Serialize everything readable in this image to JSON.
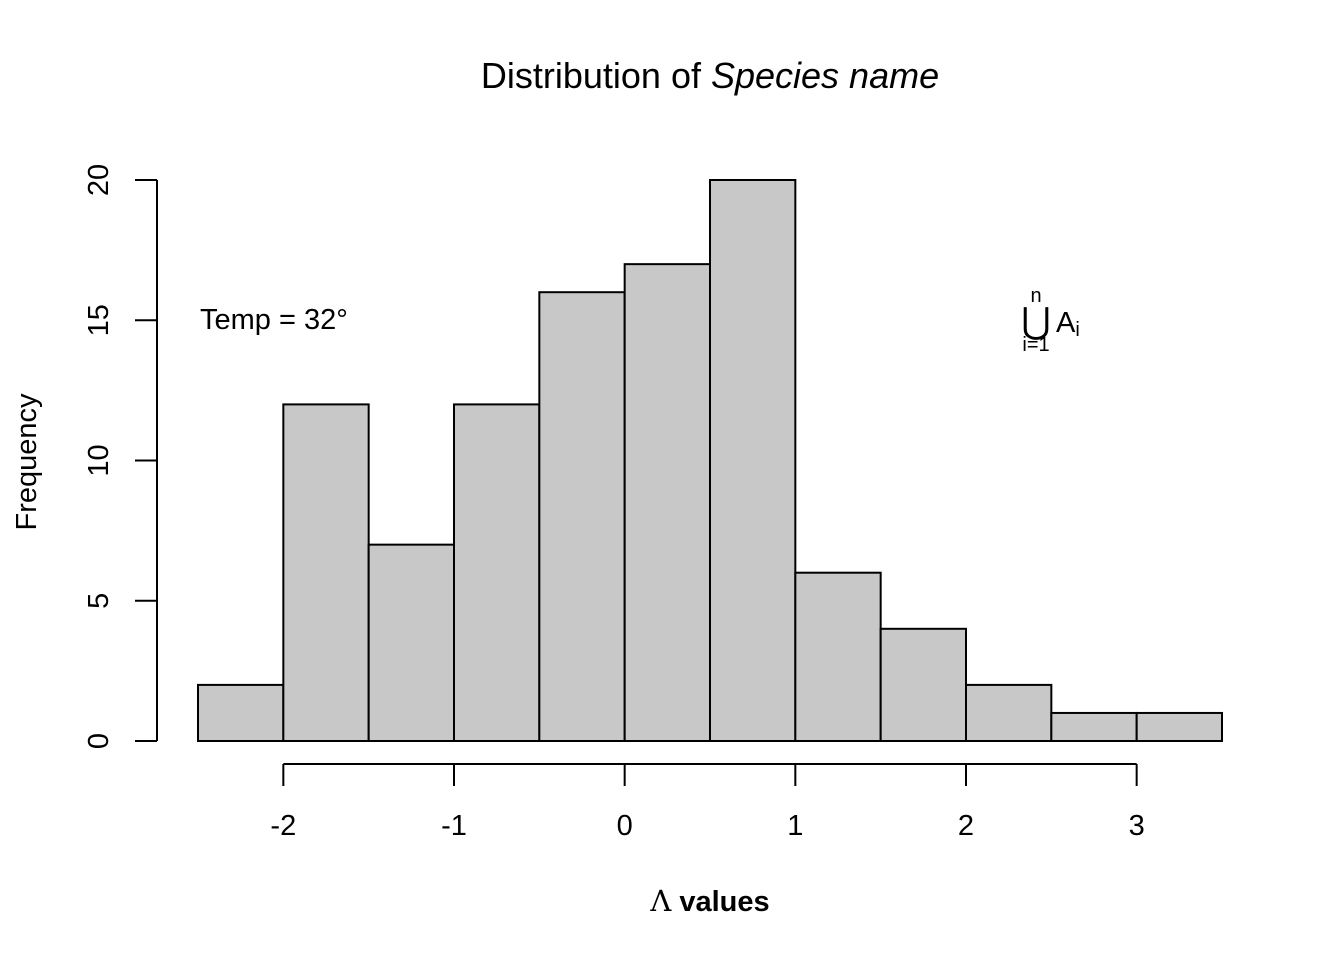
{
  "chart_data": {
    "type": "bar",
    "title_prefix": "Distribution of ",
    "title_italic": "Species name",
    "xlabel_symbol": "Λ",
    "xlabel_text": " values",
    "ylabel": "Frequency",
    "bins": [
      {
        "x0": -2.5,
        "x1": -2.0,
        "count": 2
      },
      {
        "x0": -2.0,
        "x1": -1.5,
        "count": 12
      },
      {
        "x0": -1.5,
        "x1": -1.0,
        "count": 7
      },
      {
        "x0": -1.0,
        "x1": -0.5,
        "count": 12
      },
      {
        "x0": -0.5,
        "x1": 0.0,
        "count": 16
      },
      {
        "x0": 0.0,
        "x1": 0.5,
        "count": 17
      },
      {
        "x0": 0.5,
        "x1": 1.0,
        "count": 20
      },
      {
        "x0": 1.0,
        "x1": 1.5,
        "count": 6
      },
      {
        "x0": 1.5,
        "x1": 2.0,
        "count": 4
      },
      {
        "x0": 2.0,
        "x1": 2.5,
        "count": 2
      },
      {
        "x0": 2.5,
        "x1": 3.0,
        "count": 1
      },
      {
        "x0": 3.0,
        "x1": 3.5,
        "count": 1
      }
    ],
    "xlim": [
      -2.5,
      3.5
    ],
    "ylim": [
      0,
      20
    ],
    "xticks": [
      -2,
      -1,
      0,
      1,
      2,
      3
    ],
    "yticks": [
      0,
      5,
      10,
      15,
      20
    ],
    "grid": false,
    "colors": {
      "bar_fill": "#c8c8c8",
      "bar_stroke": "#000000"
    },
    "annotations": {
      "temp_label": "Temp = 32°",
      "union_symbol": "⋃",
      "union_upper": "n",
      "union_lower": "i=1",
      "union_term": "A",
      "union_term_sub": "i"
    }
  }
}
